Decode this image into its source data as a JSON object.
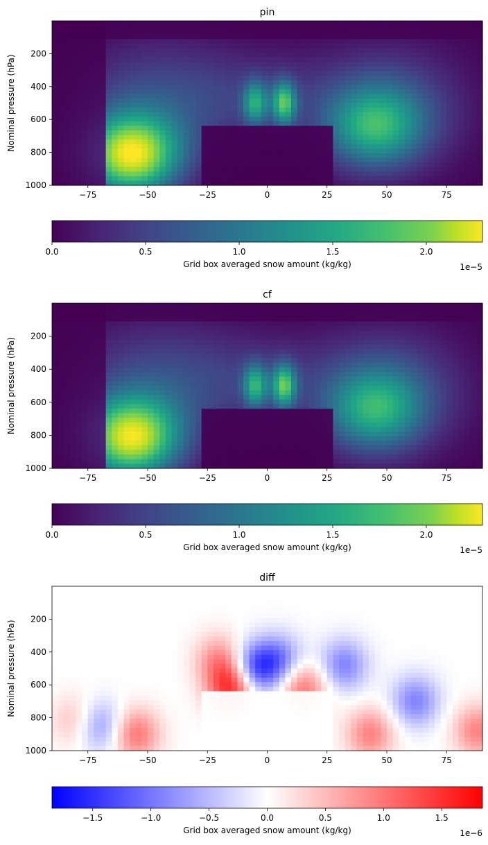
{
  "chart_data": [
    {
      "type": "heatmap",
      "title": "pin",
      "ylabel": "Nominal pressure (hPa)",
      "xlabel": "",
      "xlim": [
        -90,
        90
      ],
      "ylim": [
        1000,
        0
      ],
      "xticks": [
        -75,
        -50,
        -25,
        0,
        25,
        50,
        75
      ],
      "yticks": [
        200,
        400,
        600,
        800,
        1000
      ],
      "colormap": "viridis",
      "colorbar": {
        "label": "Grid box averaged snow amount (kg/kg)",
        "ticks": [
          "0.0",
          "0.5",
          "1.0",
          "1.5",
          "2.0"
        ],
        "tick_values": [
          0.0,
          0.5,
          1.0,
          1.5,
          2.0
        ],
        "multiplier": "1e−5",
        "range": [
          0.0,
          2.3
        ]
      },
      "features": [
        {
          "lat": -57,
          "p": 820,
          "value": 2.1,
          "desc": "southern mid-latitude maximum"
        },
        {
          "lat": -5,
          "p": 500,
          "value": 1.1,
          "desc": "tropical column"
        },
        {
          "lat": 7,
          "p": 500,
          "value": 1.4,
          "desc": "tropical column"
        },
        {
          "lat": 45,
          "p": 650,
          "value": 1.15,
          "desc": "northern mid-latitude maximum"
        }
      ]
    },
    {
      "type": "heatmap",
      "title": "cf",
      "ylabel": "Nominal pressure (hPa)",
      "xlabel": "",
      "xlim": [
        -90,
        90
      ],
      "ylim": [
        1000,
        0
      ],
      "xticks": [
        -75,
        -50,
        -25,
        0,
        25,
        50,
        75
      ],
      "yticks": [
        200,
        400,
        600,
        800,
        1000
      ],
      "colormap": "viridis",
      "colorbar": {
        "label": "Grid box averaged snow amount (kg/kg)",
        "ticks": [
          "0.0",
          "0.5",
          "1.0",
          "1.5",
          "2.0"
        ],
        "tick_values": [
          0.0,
          0.5,
          1.0,
          1.5,
          2.0
        ],
        "multiplier": "1e−5",
        "range": [
          0.0,
          2.3
        ]
      },
      "features": [
        {
          "lat": -57,
          "p": 820,
          "value": 2.05,
          "desc": "southern mid-latitude maximum"
        },
        {
          "lat": -5,
          "p": 500,
          "value": 1.15,
          "desc": "tropical column"
        },
        {
          "lat": 7,
          "p": 500,
          "value": 1.45,
          "desc": "tropical column"
        },
        {
          "lat": 45,
          "p": 650,
          "value": 1.1,
          "desc": "northern mid-latitude maximum"
        }
      ]
    },
    {
      "type": "heatmap",
      "title": "diff",
      "ylabel": "Nominal pressure (hPa)",
      "xlabel": "",
      "xlim": [
        -90,
        90
      ],
      "ylim": [
        1000,
        0
      ],
      "xticks": [
        -75,
        -50,
        -25,
        0,
        25,
        50,
        75
      ],
      "yticks": [
        200,
        400,
        600,
        800,
        1000
      ],
      "colormap": "bwr",
      "colorbar": {
        "label": "Grid box averaged snow amount (kg/kg)",
        "ticks": [
          "−1.5",
          "−1.0",
          "−0.5",
          "0.0",
          "0.5",
          "1.0",
          "1.5"
        ],
        "tick_values": [
          -1.5,
          -1.0,
          -0.5,
          0.0,
          0.5,
          1.0,
          1.5
        ],
        "multiplier": "1e−6",
        "range": [
          -1.85,
          1.85
        ]
      },
      "features": [
        {
          "lat": -5,
          "p": 500,
          "value": -1.3
        },
        {
          "lat": 5,
          "p": 450,
          "value": -0.9
        },
        {
          "lat": 32,
          "p": 480,
          "value": -0.9
        },
        {
          "lat": 62,
          "p": 700,
          "value": -0.9
        },
        {
          "lat": -70,
          "p": 850,
          "value": -0.8
        },
        {
          "lat": -15,
          "p": 620,
          "value": 1.5
        },
        {
          "lat": -20,
          "p": 450,
          "value": 0.8
        },
        {
          "lat": 15,
          "p": 620,
          "value": 1.0
        },
        {
          "lat": -80,
          "p": 820,
          "value": 0.5
        },
        {
          "lat": -55,
          "p": 900,
          "value": 1.0
        },
        {
          "lat": 43,
          "p": 900,
          "value": 0.9
        },
        {
          "lat": 88,
          "p": 880,
          "value": 0.9
        }
      ]
    }
  ]
}
